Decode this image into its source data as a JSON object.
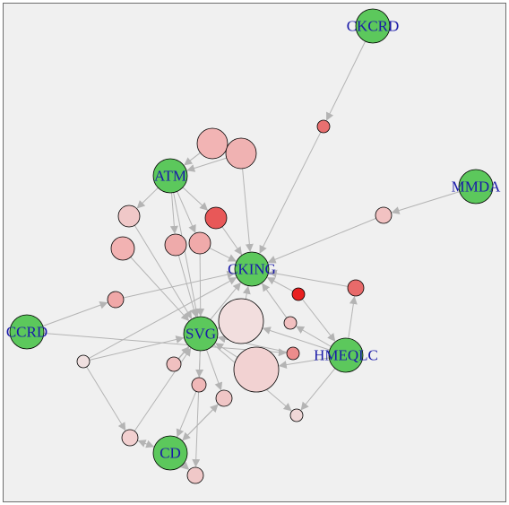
{
  "colors": {
    "background": "#f0f0f0",
    "edge": "#b4b4b4",
    "label": "#1a1aa8",
    "named_node": "#5cc85c"
  },
  "graph": {
    "nodes": [
      {
        "id": "CKCRD",
        "label": "CKCRD",
        "fill": "#5cc85c"
      },
      {
        "id": "MMDA",
        "label": "MMDA",
        "fill": "#5cc85c"
      },
      {
        "id": "ATM",
        "label": "ATM",
        "fill": "#5cc85c"
      },
      {
        "id": "CKING",
        "label": "CKING",
        "fill": "#5cc85c"
      },
      {
        "id": "CCRD",
        "label": "CCRD",
        "fill": "#5cc85c"
      },
      {
        "id": "SVG",
        "label": "SVG",
        "fill": "#5cc85c"
      },
      {
        "id": "HMEQLC",
        "label": "HMEQLC",
        "fill": "#5cc85c"
      },
      {
        "id": "CD",
        "label": "CD",
        "fill": "#5cc85c"
      },
      {
        "id": "n1",
        "label": "",
        "fill": "#e87070"
      },
      {
        "id": "n2",
        "label": "",
        "fill": "#f2b4b4"
      },
      {
        "id": "n3",
        "label": "",
        "fill": "#f0b2b2"
      },
      {
        "id": "n4",
        "label": "",
        "fill": "#f2c2c2"
      },
      {
        "id": "n5",
        "label": "",
        "fill": "#e85858"
      },
      {
        "id": "n6",
        "label": "",
        "fill": "#f0c8c8"
      },
      {
        "id": "n7",
        "label": "",
        "fill": "#f2b2b2"
      },
      {
        "id": "n8",
        "label": "",
        "fill": "#eeaaaa"
      },
      {
        "id": "n9",
        "label": "",
        "fill": "#f0aaaa"
      },
      {
        "id": "n10",
        "label": "",
        "fill": "#f0a8a8"
      },
      {
        "id": "n11",
        "label": "",
        "fill": "#e86a6a"
      },
      {
        "id": "n12",
        "label": "",
        "fill": "#e82020"
      },
      {
        "id": "n13",
        "label": "",
        "fill": "#f2dede"
      },
      {
        "id": "n14",
        "label": "",
        "fill": "#f2c0c0"
      },
      {
        "id": "n15",
        "label": "",
        "fill": "#f2d2d2"
      },
      {
        "id": "n16",
        "label": "",
        "fill": "#ec8c8c"
      },
      {
        "id": "n17",
        "label": "",
        "fill": "#f0e0e0"
      },
      {
        "id": "n18",
        "label": "",
        "fill": "#f0c0c0"
      },
      {
        "id": "n19",
        "label": "",
        "fill": "#f0b8b8"
      },
      {
        "id": "n20",
        "label": "",
        "fill": "#f0c6c6"
      },
      {
        "id": "n21",
        "label": "",
        "fill": "#f2d0d0"
      },
      {
        "id": "n22",
        "label": "",
        "fill": "#f0c8c8"
      },
      {
        "id": "n23",
        "label": "",
        "fill": "#f0d8d8"
      }
    ],
    "edges": [
      {
        "from": "CKCRD",
        "to": "n1"
      },
      {
        "from": "n1",
        "to": "CKING"
      },
      {
        "from": "MMDA",
        "to": "n4"
      },
      {
        "from": "n4",
        "to": "CKING"
      },
      {
        "from": "n2",
        "to": "ATM"
      },
      {
        "from": "n3",
        "to": "ATM"
      },
      {
        "from": "n3",
        "to": "CKING"
      },
      {
        "from": "ATM",
        "to": "n6"
      },
      {
        "from": "ATM",
        "to": "n5"
      },
      {
        "from": "ATM",
        "to": "n8"
      },
      {
        "from": "ATM",
        "to": "n9"
      },
      {
        "from": "ATM",
        "to": "SVG"
      },
      {
        "from": "n5",
        "to": "CKING"
      },
      {
        "from": "n7",
        "to": "SVG"
      },
      {
        "from": "n6",
        "to": "SVG"
      },
      {
        "from": "n8",
        "to": "SVG"
      },
      {
        "from": "n9",
        "to": "SVG"
      },
      {
        "from": "n9",
        "to": "CKING"
      },
      {
        "from": "CCRD",
        "to": "n10"
      },
      {
        "from": "n10",
        "to": "CKING"
      },
      {
        "from": "CCRD",
        "to": "n16"
      },
      {
        "from": "n16",
        "to": "SVG"
      },
      {
        "from": "n11",
        "to": "CKING"
      },
      {
        "from": "HMEQLC",
        "to": "n11"
      },
      {
        "from": "n12",
        "to": "HMEQLC"
      },
      {
        "from": "n12",
        "to": "CKING"
      },
      {
        "from": "HMEQLC",
        "to": "n13"
      },
      {
        "from": "n13",
        "to": "CKING"
      },
      {
        "from": "n13",
        "to": "SVG"
      },
      {
        "from": "HMEQLC",
        "to": "n14"
      },
      {
        "from": "n14",
        "to": "CKING"
      },
      {
        "from": "HMEQLC",
        "to": "n15"
      },
      {
        "from": "n15",
        "to": "SVG"
      },
      {
        "from": "HMEQLC",
        "to": "n23"
      },
      {
        "from": "n18",
        "to": "SVG"
      },
      {
        "from": "n18",
        "to": "CKING"
      },
      {
        "from": "n17",
        "to": "SVG"
      },
      {
        "from": "n17",
        "to": "CKING"
      },
      {
        "from": "n17",
        "to": "n21"
      },
      {
        "from": "SVG",
        "to": "n19"
      },
      {
        "from": "SVG",
        "to": "n20"
      },
      {
        "from": "SVG",
        "to": "n22"
      },
      {
        "from": "SVG",
        "to": "n23"
      },
      {
        "from": "n19",
        "to": "CD"
      },
      {
        "from": "n20",
        "to": "CD"
      },
      {
        "from": "n21",
        "to": "CD"
      },
      {
        "from": "n21",
        "to": "SVG"
      },
      {
        "from": "CD",
        "to": "n22"
      },
      {
        "from": "CD",
        "to": "n20"
      },
      {
        "from": "CD",
        "to": "n21"
      }
    ]
  }
}
